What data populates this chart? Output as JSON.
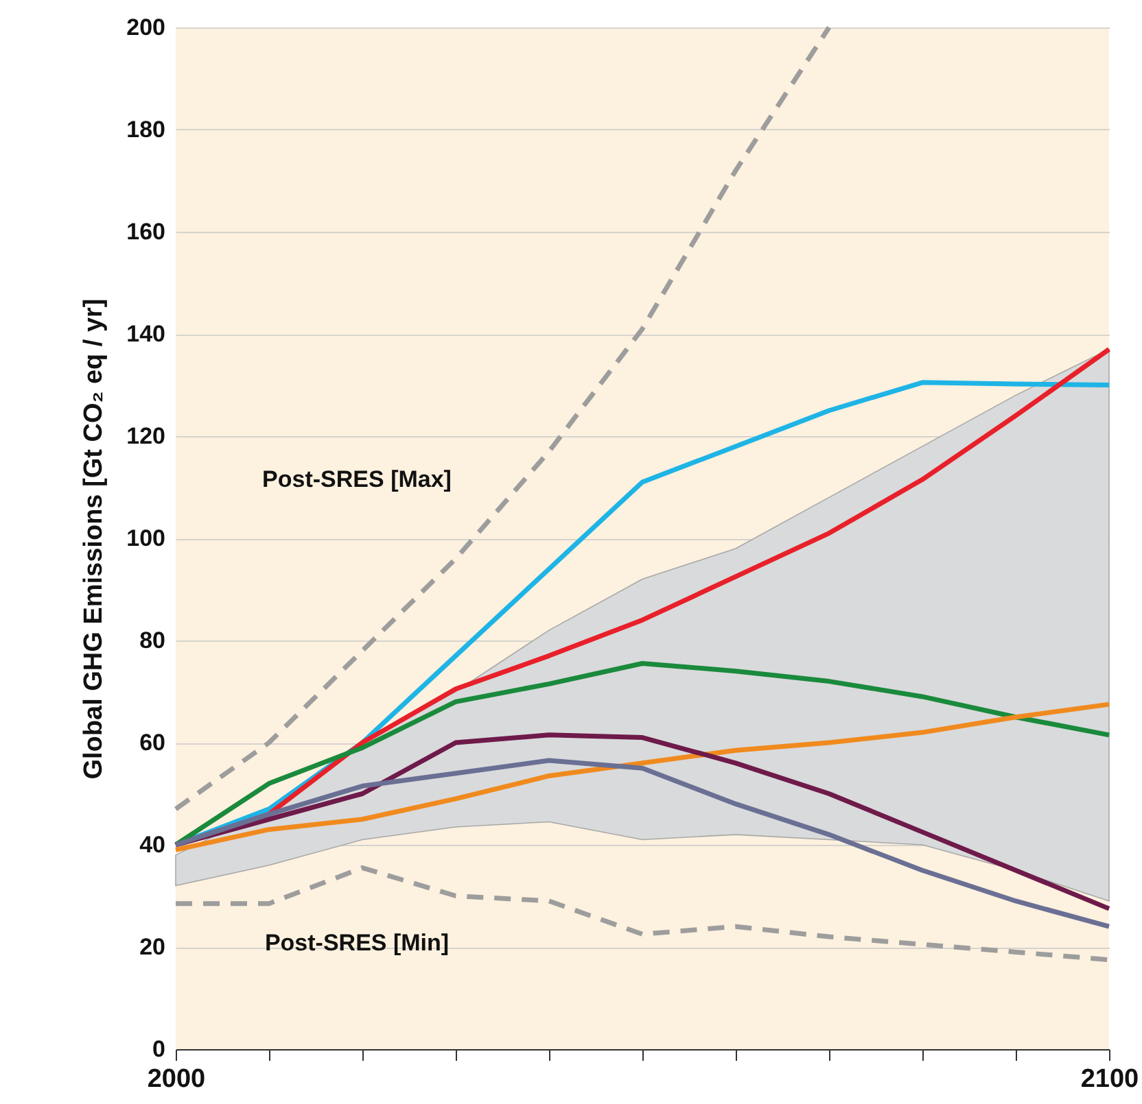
{
  "chart_data": {
    "type": "line",
    "ylabel": "Global GHG Emissions [Gt CO₂ eq / yr]",
    "x": [
      2000,
      2010,
      2020,
      2030,
      2040,
      2050,
      2060,
      2070,
      2080,
      2090,
      2100
    ],
    "xlim": [
      2000,
      2100
    ],
    "xticks": [
      2000,
      {
        "value": 2010,
        "label": null
      },
      {
        "value": 2020,
        "label": null
      },
      {
        "value": 2030,
        "label": null
      },
      {
        "value": 2040,
        "label": null
      },
      {
        "value": 2050,
        "label": null
      },
      {
        "value": 2060,
        "label": null
      },
      {
        "value": 2070,
        "label": null
      },
      {
        "value": 2080,
        "label": null
      },
      {
        "value": 2090,
        "label": null
      },
      2100
    ],
    "ylim": [
      0,
      200
    ],
    "yticks": [
      0,
      20,
      40,
      60,
      80,
      100,
      120,
      140,
      160,
      180,
      200
    ],
    "grid": "y",
    "series": [
      {
        "color": "#d9dadb",
        "values": [
          null,
          null,
          null,
          null,
          null,
          null,
          null,
          null,
          null,
          null,
          null
        ],
        "upper": [
          38,
          47,
          60,
          70,
          82,
          92,
          98,
          108,
          118,
          128,
          137
        ],
        "lower": [
          32,
          36,
          41,
          43.5,
          44.5,
          41,
          42,
          41,
          40,
          35,
          29
        ]
      },
      {
        "color": "#9d9d9d",
        "line_style": "dashed",
        "x": [
          2000,
          2010,
          2020,
          2030,
          2040,
          2050,
          2060,
          2070
        ],
        "values": [
          47,
          60,
          78,
          96,
          117,
          141,
          172,
          200
        ]
      },
      {
        "color": "#9d9d9d",
        "line_style": "dashed",
        "values": [
          28.5,
          28.5,
          35.5,
          30,
          29,
          22.5,
          24,
          22,
          20.5,
          19,
          17.5
        ]
      },
      {
        "color": "#1eb4e6",
        "values": [
          40,
          47,
          60,
          77,
          94,
          111,
          118,
          125,
          130.5,
          130.2,
          130
        ]
      },
      {
        "color": "#e8202a",
        "values": [
          40,
          46,
          60,
          70.5,
          77,
          84,
          92.5,
          101,
          111.5,
          124,
          137
        ]
      },
      {
        "color": "#1a8a3c",
        "values": [
          40,
          52,
          59,
          68,
          71.5,
          75.5,
          74,
          72,
          69,
          65,
          61.5
        ]
      },
      {
        "color": "#f08a1e",
        "values": [
          39,
          43,
          45,
          49,
          53.5,
          56,
          58.5,
          60,
          62,
          65,
          67.5
        ]
      },
      {
        "color": "#6e1a4a",
        "values": [
          40,
          45,
          50,
          60,
          61.5,
          61,
          56,
          50,
          42.5,
          35,
          27.5
        ]
      },
      {
        "color": "#6a6f94",
        "values": [
          40,
          46,
          51.5,
          54,
          56.5,
          55,
          48,
          42,
          35,
          29,
          24
        ]
      }
    ],
    "annotations": [
      "Post-SRES [Max]",
      "Post-SRES [Min]"
    ]
  }
}
